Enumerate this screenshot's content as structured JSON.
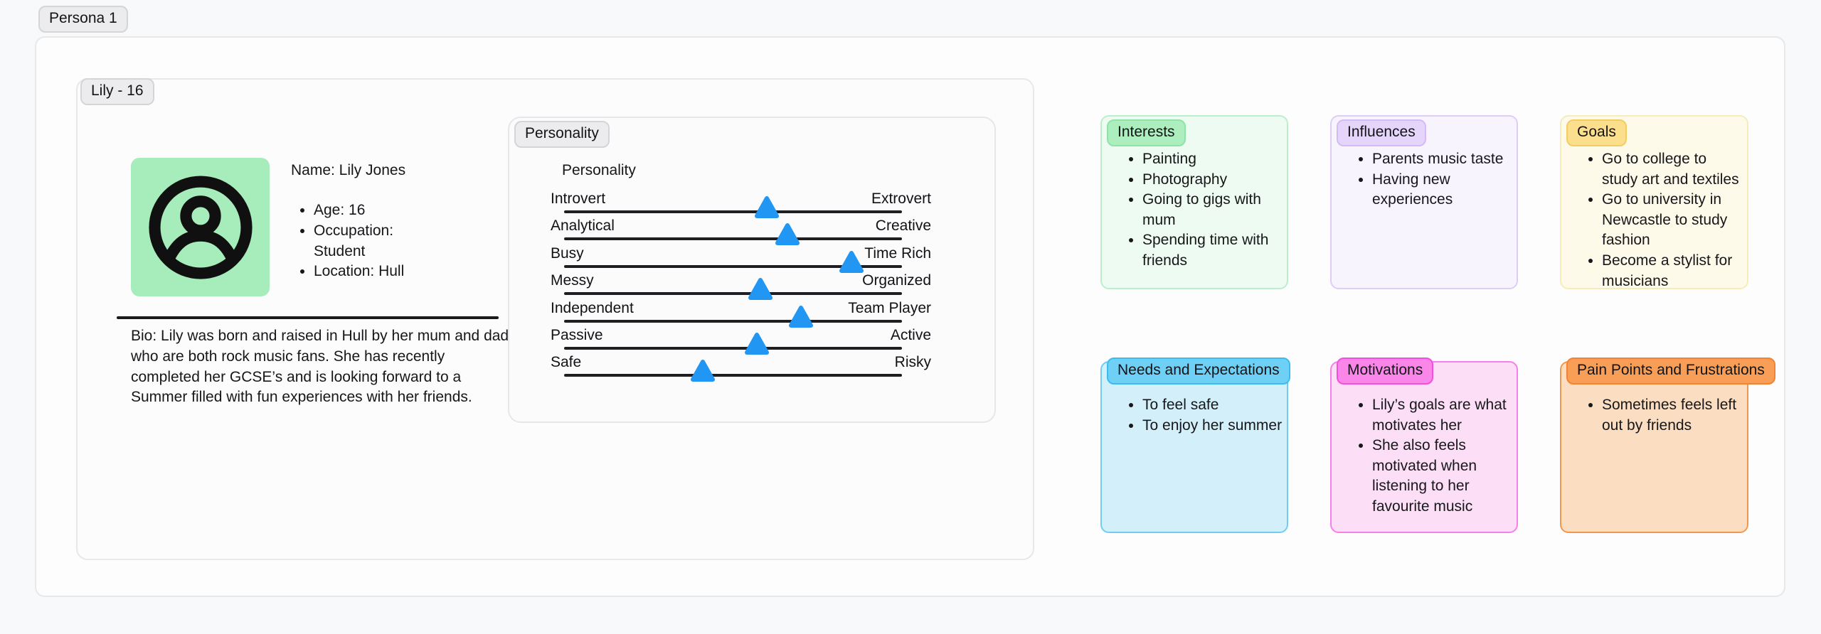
{
  "persona_tag": "Persona 1",
  "profile": {
    "tag": "Lily - 16",
    "name": "Name: Lily Jones",
    "details": [
      "Age: 16",
      "Occupation: Student",
      "Location: Hull"
    ],
    "bio": "Bio: Lily was born and raised in Hull by her mum and dad who are both rock music fans. She has recently completed her GCSE’s and is looking forward to a Summer filled with fun experiences with her friends.",
    "avatar_icon": "person-icon",
    "avatar_bg": "#a6edbb"
  },
  "personality": {
    "tag": "Personality",
    "heading": "Personality",
    "marker_color": "#2196f3",
    "sliders": [
      {
        "left": "Introvert",
        "right": "Extrovert",
        "value": 0.6
      },
      {
        "left": "Analytical",
        "right": "Creative",
        "value": 0.66
      },
      {
        "left": "Busy",
        "right": "Time Rich",
        "value": 0.85
      },
      {
        "left": "Messy",
        "right": "Organized",
        "value": 0.58
      },
      {
        "left": "Independent",
        "right": "Team Player",
        "value": 0.7
      },
      {
        "left": "Passive",
        "right": "Active",
        "value": 0.57
      },
      {
        "left": "Safe",
        "right": "Risky",
        "value": 0.41
      }
    ]
  },
  "cards": [
    {
      "id": "interests",
      "title": "Interests",
      "items": [
        "Painting",
        "Photography",
        "Going to gigs with mum",
        "Spending time with friends"
      ],
      "colors": {
        "chip_bg": "#aceebd",
        "chip_bd": "#8fe3a6",
        "card_bg": "#eefbf2",
        "card_bd": "#bceecb"
      }
    },
    {
      "id": "influences",
      "title": "Influences",
      "items": [
        "Parents music taste",
        "Having new experiences"
      ],
      "colors": {
        "chip_bg": "#e6d5fb",
        "chip_bd": "#d4baf7",
        "card_bg": "#f8f4fe",
        "card_bd": "#ddcdf7"
      }
    },
    {
      "id": "goals",
      "title": "Goals",
      "items": [
        "Go to college to study art and textiles",
        "Go to university in Newcastle to study fashion",
        "Become a stylist for musicians"
      ],
      "colors": {
        "chip_bg": "#fbdf8d",
        "chip_bd": "#f2cd60",
        "card_bg": "#fefae9",
        "card_bd": "#f6ecbb"
      }
    },
    {
      "id": "needs",
      "title": "Needs and Expectations",
      "items": [
        "To feel safe",
        "To enjoy her summer"
      ],
      "colors": {
        "chip_bg": "#6ed0f5",
        "chip_bd": "#3cbced",
        "card_bg": "#d3effa",
        "card_bd": "#6fcdf2"
      }
    },
    {
      "id": "motivations",
      "title": "Motivations",
      "items": [
        "Lily’s goals are what motivates her",
        "She also feels motivated when listening to her favourite music"
      ],
      "colors": {
        "chip_bg": "#fa86ea",
        "chip_bd": "#f44fdc",
        "card_bg": "#fcdff7",
        "card_bd": "#f77fe7"
      }
    },
    {
      "id": "pain",
      "title": "Pain Points and Frustrations",
      "items": [
        "Sometimes feels left out by friends"
      ],
      "colors": {
        "chip_bg": "#f89e56",
        "chip_bd": "#f28332",
        "card_bg": "#fbdec1",
        "card_bd": "#f0994e"
      }
    }
  ]
}
